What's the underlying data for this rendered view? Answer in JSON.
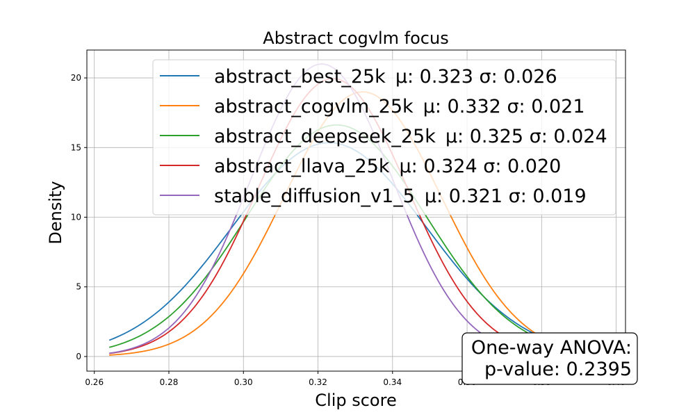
{
  "chart_data": {
    "type": "line",
    "title": "Abstract cogvlm focus",
    "xlabel": "Clip score",
    "ylabel": "Density",
    "xlim": [
      0.258,
      0.4025
    ],
    "ylim": [
      -1.05,
      22.0
    ],
    "x_ticks": [
      0.26,
      0.28,
      0.3,
      0.32,
      0.34,
      0.36,
      0.38,
      0.4
    ],
    "x_tick_labels": [
      "0.26",
      "0.28",
      "0.30",
      "0.32",
      "0.34",
      "0.36",
      "0.38",
      "0.40"
    ],
    "y_ticks": [
      0,
      5,
      10,
      15,
      20
    ],
    "y_tick_labels": [
      "0",
      "5",
      "10",
      "15",
      "20"
    ],
    "grid": true,
    "legend_position": "top-right",
    "x_range": [
      0.264,
      0.394
    ],
    "series": [
      {
        "name": "abstract_best_25k",
        "stats": "μ: 0.323 σ: 0.026",
        "mu": 0.323,
        "sigma": 0.026,
        "color": "#1f77b4"
      },
      {
        "name": "abstract_cogvlm_25k",
        "stats": "μ: 0.332 σ: 0.021",
        "mu": 0.332,
        "sigma": 0.021,
        "color": "#ff7f0e"
      },
      {
        "name": "abstract_deepseek_25k",
        "stats": "μ: 0.325 σ: 0.024",
        "mu": 0.325,
        "sigma": 0.024,
        "color": "#2ca02c"
      },
      {
        "name": "abstract_llava_25k",
        "stats": "μ: 0.324 σ: 0.020",
        "mu": 0.324,
        "sigma": 0.02,
        "color": "#d62728"
      },
      {
        "name": "stable_diffusion_v1_5",
        "stats": "μ: 0.321 σ: 0.019",
        "mu": 0.321,
        "sigma": 0.019,
        "color": "#9467bd"
      }
    ],
    "annotation": {
      "line1": "One-way ANOVA:",
      "line2": "p-value: 0.2395"
    }
  }
}
